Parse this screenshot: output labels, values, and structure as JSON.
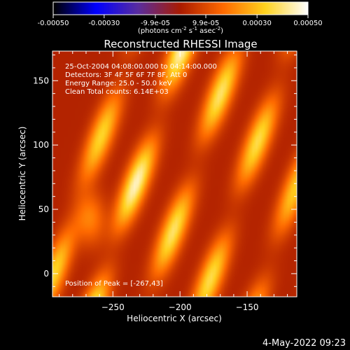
{
  "chart_data": {
    "type": "heatmap",
    "title": "Reconstructed RHESSI Image",
    "xlabel": "Heliocentric X (arcsec)",
    "ylabel": "Heliocentric Y (arcsec)",
    "xlim": [
      -295,
      -113
    ],
    "ylim": [
      -18,
      173
    ],
    "x_ticks": [
      -250,
      -200,
      -150
    ],
    "y_ticks": [
      0,
      50,
      100,
      150
    ],
    "colorbar": {
      "range": [
        -0.0005,
        0.0005
      ],
      "tick_values": [
        -0.0005,
        -0.0003,
        -9.9e-05,
        9.9e-05,
        0.0003,
        0.0005
      ],
      "tick_labels": [
        "-0.00050",
        "-0.00030",
        "-9.9e-05",
        "9.9e-05",
        "0.00030",
        "0.00050"
      ],
      "units_main": "(photons cm",
      "units_exp1": "-2",
      "units_mid": " s",
      "units_exp2": "-1",
      "units_end": " asec",
      "units_exp3": "-2",
      "units_close": ")"
    },
    "colormap": [
      "#000000",
      "#0000ff",
      "#5a2d9e",
      "#aa1b00",
      "#ff6a00",
      "#ffd21e",
      "#ffffff"
    ],
    "annotations": [
      "25-Oct-2004 04:08:00.000 to 04:14:00.000",
      "Detectors: 3F 4F 5F 6F 7F 8F, Att 0",
      "Energy Range: 25.0 - 50.0 keV",
      "Clean     Total counts: 6.14E+03"
    ],
    "peak_label": "Position of Peak = [-267,43]",
    "peak": [
      -267,
      43
    ],
    "stripes": [
      {
        "x_at_bottom": -300,
        "slope": 0.33,
        "amplitude": 0.75
      },
      {
        "x_at_bottom": -262,
        "slope": 0.33,
        "amplitude": 1.0
      },
      {
        "x_at_bottom": -222,
        "slope": 0.33,
        "amplitude": 0.85
      },
      {
        "x_at_bottom": -182,
        "slope": 0.33,
        "amplitude": 0.8
      },
      {
        "x_at_bottom": -142,
        "slope": 0.33,
        "amplitude": 0.7
      },
      {
        "x_at_bottom": -104,
        "slope": 0.33,
        "amplitude": 0.6
      }
    ]
  },
  "footer": {
    "date": "4-May-2022 09:23"
  }
}
